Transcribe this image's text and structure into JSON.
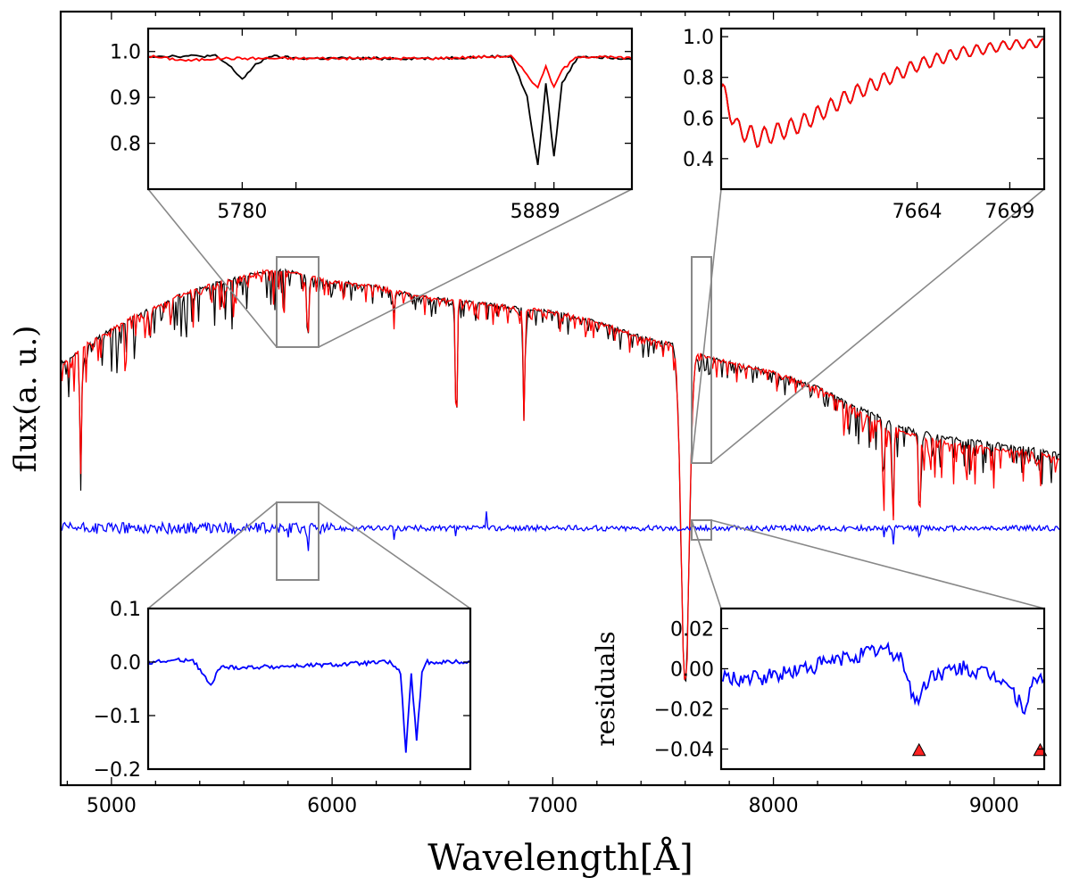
{
  "chart_data": [
    {
      "id": "main",
      "type": "line",
      "xlabel": "Wavelength[Å]",
      "ylabel": "flux(a. u.)",
      "xlim": [
        4770,
        9300
      ],
      "x_ticks": [
        5000,
        6000,
        7000,
        8000,
        9000
      ],
      "x_tick_labels": [
        "5000",
        "6000",
        "7000",
        "8000",
        "9000"
      ],
      "y_ticks_labeled": false,
      "grid": false,
      "series": [
        {
          "color": "#000000",
          "description_role": "observed spectrum",
          "x": [
            4790,
            4900,
            5100,
            5300,
            5500,
            5700,
            5800,
            5900,
            6000,
            6200,
            6400,
            6600,
            6800,
            7000,
            7200,
            7400,
            7500,
            7590,
            7700,
            7800,
            8000,
            8200,
            8400,
            8600,
            8800,
            9000,
            9200,
            9300
          ],
          "y": [
            0.82,
            0.86,
            0.91,
            0.95,
            0.98,
            1.0,
            1.0,
            0.99,
            0.98,
            0.97,
            0.95,
            0.94,
            0.93,
            0.92,
            0.9,
            0.87,
            0.86,
            0.85,
            0.83,
            0.82,
            0.8,
            0.77,
            0.73,
            0.69,
            0.67,
            0.66,
            0.65,
            0.64
          ]
        },
        {
          "color": "#ff0000",
          "description_role": "model spectrum",
          "x": [
            4790,
            4900,
            5100,
            5300,
            5500,
            5700,
            5800,
            5900,
            6000,
            6200,
            6400,
            6600,
            6800,
            7000,
            7200,
            7400,
            7500,
            7590,
            7700,
            7800,
            8000,
            8200,
            8400,
            8600,
            8800,
            9000,
            9200,
            9300
          ],
          "y": [
            0.82,
            0.86,
            0.91,
            0.95,
            0.98,
            1.0,
            1.0,
            0.99,
            0.98,
            0.97,
            0.95,
            0.94,
            0.93,
            0.92,
            0.9,
            0.87,
            0.86,
            0.85,
            0.83,
            0.82,
            0.8,
            0.77,
            0.72,
            0.68,
            0.66,
            0.65,
            0.64,
            0.63
          ]
        },
        {
          "color": "#0000ff",
          "description_role": "residuals (offset)",
          "x": [
            4790,
            5500,
            5890,
            6280,
            6560,
            6700,
            7000,
            7600,
            8000,
            8500,
            8540,
            8660,
            9000,
            9300
          ],
          "y": [
            0.0,
            0.0,
            -0.17,
            -0.05,
            -0.05,
            0.06,
            0.0,
            0.0,
            0.0,
            -0.05,
            -0.1,
            -0.08,
            0.0,
            0.0
          ]
        }
      ],
      "absorption_lines": [
        {
          "x": 4861,
          "depth": 0.55
        },
        {
          "x": 5175,
          "depth": 0.12
        },
        {
          "x": 5270,
          "depth": 0.1
        },
        {
          "x": 5890,
          "depth": 0.3
        },
        {
          "x": 6280,
          "depth": 0.1
        },
        {
          "x": 6563,
          "depth": 0.6
        },
        {
          "x": 6870,
          "depth": 0.5
        },
        {
          "x": 7600,
          "depth": 1.2
        },
        {
          "x": 8498,
          "depth": 0.3
        },
        {
          "x": 8542,
          "depth": 0.45
        },
        {
          "x": 8662,
          "depth": 0.4
        }
      ],
      "zoom_regions": [
        {
          "x_range": [
            5750,
            5920
          ],
          "target": "inset_top_left"
        },
        {
          "x_range": [
            7620,
            7700
          ],
          "target": "inset_top_right"
        },
        {
          "x_range": [
            5750,
            5920
          ],
          "target": "inset_bottom_left"
        },
        {
          "x_range": [
            7620,
            7700
          ],
          "target": "inset_bottom_right"
        }
      ]
    },
    {
      "id": "inset_top_left",
      "type": "line",
      "xlim": [
        5745,
        5925
      ],
      "ylim": [
        0.7,
        1.05
      ],
      "x_ticks": [
        5780,
        5800,
        5889,
        5896
      ],
      "x_tick_labels": [
        "5780",
        "",
        "5889",
        ""
      ],
      "y_ticks": [
        0.8,
        0.9,
        1.0
      ],
      "y_tick_labels": [
        "0.8",
        "0.9",
        "1.0"
      ],
      "series": [
        {
          "color": "#000000",
          "x": [
            5745,
            5770,
            5775,
            5780,
            5785,
            5790,
            5800,
            5850,
            5880,
            5886,
            5890,
            5893,
            5896,
            5899,
            5905,
            5925
          ],
          "y": [
            0.99,
            0.99,
            0.97,
            0.94,
            0.97,
            0.99,
            0.985,
            0.985,
            0.99,
            0.9,
            0.75,
            0.93,
            0.77,
            0.93,
            0.99,
            0.985
          ]
        },
        {
          "color": "#ff0000",
          "x": [
            5745,
            5760,
            5770,
            5780,
            5800,
            5850,
            5880,
            5886,
            5890,
            5893,
            5896,
            5899,
            5905,
            5925
          ],
          "y": [
            0.99,
            0.98,
            0.985,
            0.985,
            0.985,
            0.985,
            0.99,
            0.95,
            0.92,
            0.97,
            0.92,
            0.96,
            0.99,
            0.985
          ]
        }
      ]
    },
    {
      "id": "inset_top_right",
      "type": "line",
      "xlim": [
        7590,
        7712
      ],
      "ylim": [
        0.25,
        1.04
      ],
      "x_ticks": [
        7664,
        7699
      ],
      "x_tick_labels": [
        "7664",
        "7699"
      ],
      "y_ticks": [
        0.4,
        0.6,
        0.8,
        1.0
      ],
      "y_tick_labels": [
        "0.4",
        "0.6",
        "0.8",
        "1.0"
      ],
      "series": [
        {
          "color": "#000000",
          "x": [
            7590,
            7596,
            7604,
            7620,
            7640,
            7664,
            7680,
            7699,
            7712
          ],
          "y": [
            0.75,
            0.55,
            0.5,
            0.57,
            0.72,
            0.86,
            0.92,
            0.96,
            0.97
          ]
        },
        {
          "color": "#ff0000",
          "x": [
            7590,
            7596,
            7604,
            7620,
            7640,
            7664,
            7680,
            7699,
            7712
          ],
          "y": [
            0.75,
            0.55,
            0.5,
            0.57,
            0.72,
            0.86,
            0.92,
            0.96,
            0.97
          ]
        }
      ]
    },
    {
      "id": "inset_bottom_left",
      "type": "line",
      "xlim": [
        5745,
        5925
      ],
      "ylim": [
        -0.2,
        0.1
      ],
      "y_ticks": [
        -0.2,
        -0.1,
        0.0,
        0.1
      ],
      "y_tick_labels": [
        "−0.2",
        "−0.1",
        "0.0",
        "0.1"
      ],
      "series": [
        {
          "color": "#0000ff",
          "x": [
            5745,
            5770,
            5775,
            5780,
            5785,
            5800,
            5850,
            5880,
            5886,
            5889,
            5892,
            5895,
            5898,
            5901,
            5905,
            5925
          ],
          "y": [
            0.0,
            0.005,
            -0.02,
            -0.045,
            -0.01,
            -0.01,
            -0.005,
            0.0,
            -0.02,
            -0.17,
            -0.02,
            -0.15,
            -0.02,
            0.0,
            0.0,
            0.0
          ]
        }
      ]
    },
    {
      "id": "inset_bottom_right",
      "type": "line",
      "ylabel": "residuals",
      "xlim": [
        7620,
        7700
      ],
      "ylim": [
        -0.05,
        0.03
      ],
      "y_ticks": [
        -0.04,
        -0.02,
        0.0,
        0.02
      ],
      "y_tick_labels": [
        "−0.04",
        "−0.02",
        "0.00",
        "0.02"
      ],
      "series": [
        {
          "color": "#0000ff",
          "x": [
            7620,
            7630,
            7640,
            7650,
            7660,
            7665,
            7668,
            7672,
            7680,
            7690,
            7695,
            7698,
            7700
          ],
          "y": [
            -0.005,
            -0.005,
            0.0,
            0.005,
            0.01,
            0.005,
            -0.018,
            -0.003,
            0.0,
            -0.005,
            -0.02,
            -0.005,
            -0.005
          ]
        }
      ],
      "markers": [
        {
          "x": 7669,
          "y": -0.041,
          "shape": "triangle",
          "color": "#ff2222"
        },
        {
          "x": 7699,
          "y": -0.041,
          "shape": "triangle",
          "color": "#ff2222"
        }
      ]
    }
  ]
}
